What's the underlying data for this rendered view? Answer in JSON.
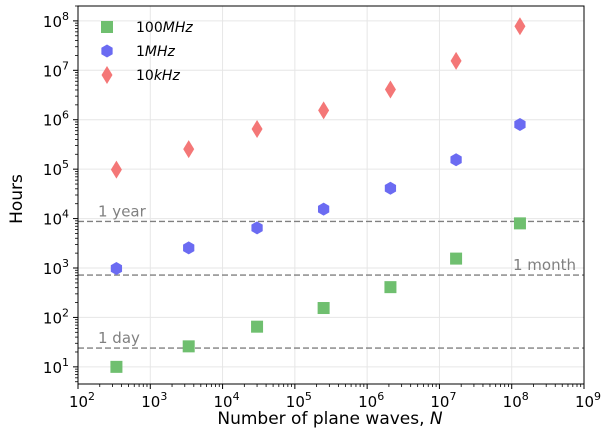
{
  "chart_data": {
    "type": "scatter",
    "xlabel": "Number of plane waves, ",
    "xlabel_var": "N",
    "ylabel": "Hours",
    "x_scale": "log",
    "y_scale": "log",
    "xlim": [
      100,
      1000000000
    ],
    "ylim": [
      4.5,
      200000000
    ],
    "grid": true,
    "legend_position": "top-left",
    "x_ticks": [
      {
        "value": 100,
        "base": "10",
        "exp": "2"
      },
      {
        "value": 1000,
        "base": "10",
        "exp": "3"
      },
      {
        "value": 10000,
        "base": "10",
        "exp": "4"
      },
      {
        "value": 100000,
        "base": "10",
        "exp": "5"
      },
      {
        "value": 1000000,
        "base": "10",
        "exp": "6"
      },
      {
        "value": 10000000,
        "base": "10",
        "exp": "7"
      },
      {
        "value": 100000000,
        "base": "10",
        "exp": "8"
      },
      {
        "value": 1000000000,
        "base": "10",
        "exp": "9"
      }
    ],
    "y_ticks": [
      {
        "value": 10,
        "base": "10",
        "exp": "1"
      },
      {
        "value": 100,
        "base": "10",
        "exp": "2"
      },
      {
        "value": 1000,
        "base": "10",
        "exp": "3"
      },
      {
        "value": 10000,
        "base": "10",
        "exp": "4"
      },
      {
        "value": 100000,
        "base": "10",
        "exp": "5"
      },
      {
        "value": 1000000,
        "base": "10",
        "exp": "6"
      },
      {
        "value": 10000000,
        "base": "10",
        "exp": "7"
      },
      {
        "value": 100000000,
        "base": "10",
        "exp": "8"
      }
    ],
    "series": [
      {
        "name_num": "100",
        "name_unit": "MHz",
        "marker": "square",
        "color": "#6fbf6f",
        "points": [
          {
            "x": 340,
            "y": 10
          },
          {
            "x": 3400,
            "y": 26
          },
          {
            "x": 30000,
            "y": 65
          },
          {
            "x": 250000,
            "y": 155
          },
          {
            "x": 2100000,
            "y": 410
          },
          {
            "x": 17000000,
            "y": 1550
          },
          {
            "x": 130000000,
            "y": 8000
          }
        ]
      },
      {
        "name_num": "1",
        "name_unit": "MHz",
        "marker": "hexagon",
        "color": "#6b6bf2",
        "points": [
          {
            "x": 340,
            "y": 980
          },
          {
            "x": 3400,
            "y": 2550
          },
          {
            "x": 30000,
            "y": 6500
          },
          {
            "x": 250000,
            "y": 15500
          },
          {
            "x": 2100000,
            "y": 41000
          },
          {
            "x": 17000000,
            "y": 155000
          },
          {
            "x": 130000000,
            "y": 800000
          }
        ]
      },
      {
        "name_num": "10",
        "name_unit": "kHz",
        "marker": "diamond",
        "color": "#f47777",
        "points": [
          {
            "x": 340,
            "y": 98000
          },
          {
            "x": 3400,
            "y": 255000
          },
          {
            "x": 30000,
            "y": 650000
          },
          {
            "x": 250000,
            "y": 1550000
          },
          {
            "x": 2100000,
            "y": 4100000
          },
          {
            "x": 17000000,
            "y": 15500000
          },
          {
            "x": 130000000,
            "y": 78000000
          }
        ]
      }
    ],
    "reference_lines": [
      {
        "label": "1 year",
        "y": 8760,
        "label_side": "left"
      },
      {
        "label": "1 month",
        "y": 720,
        "label_side": "right"
      },
      {
        "label": "1 day",
        "y": 24,
        "label_side": "left"
      }
    ]
  }
}
